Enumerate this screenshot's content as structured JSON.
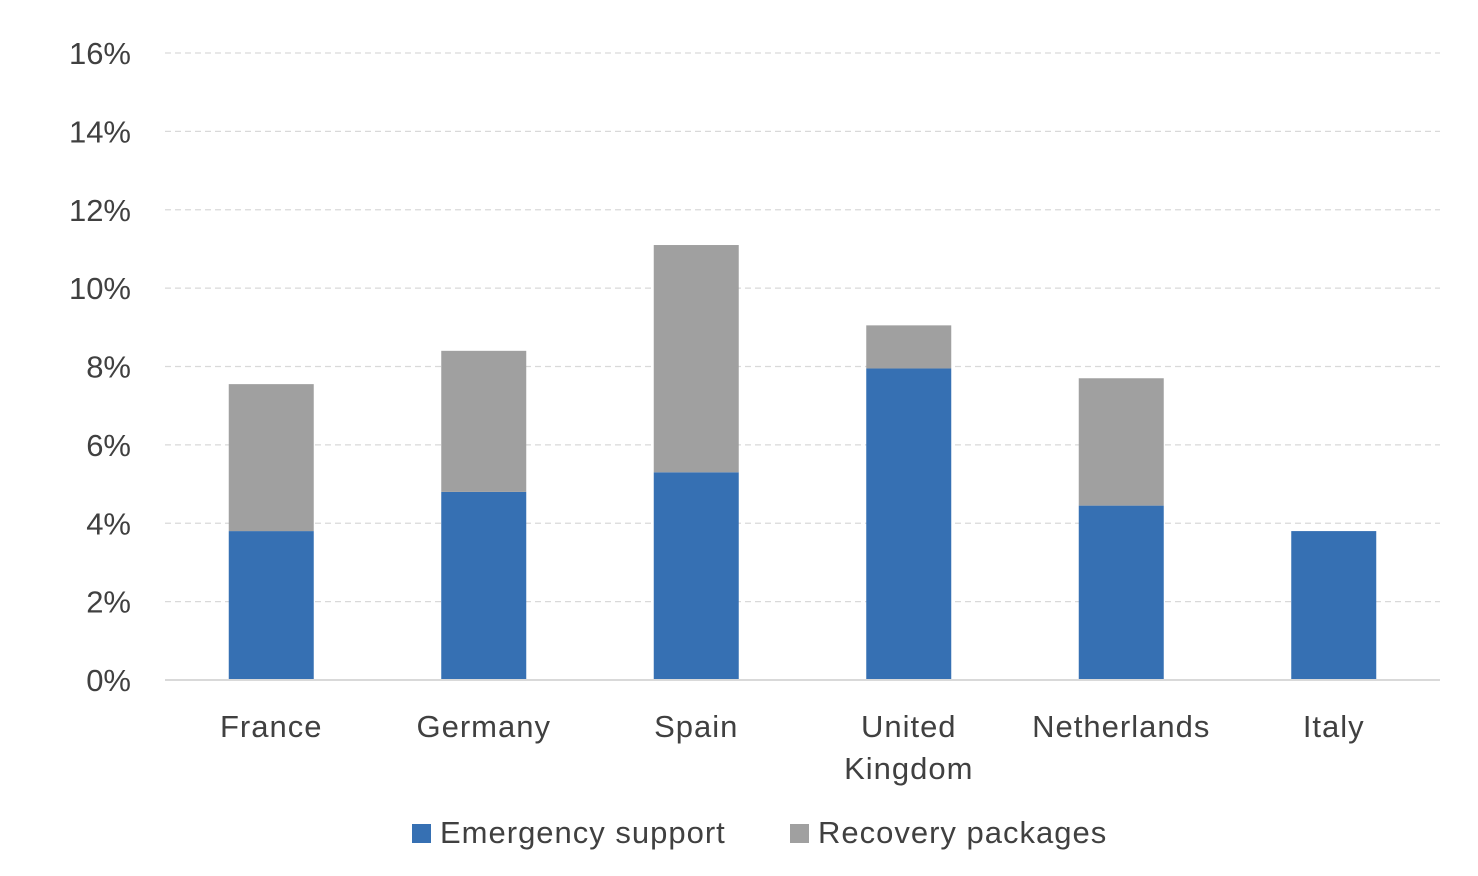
{
  "chart_data": {
    "type": "bar",
    "stacked": true,
    "categories": [
      [
        "France"
      ],
      [
        "Germany"
      ],
      [
        "Spain"
      ],
      [
        "United",
        "Kingdom"
      ],
      [
        "Netherlands"
      ],
      [
        "Italy"
      ]
    ],
    "series": [
      {
        "name": "Emergency support",
        "color": "#3670b3",
        "values": [
          3.8,
          4.8,
          5.3,
          7.95,
          4.45,
          3.8
        ]
      },
      {
        "name": "Recovery packages",
        "color": "#a0a0a0",
        "values": [
          3.75,
          3.6,
          5.8,
          1.1,
          3.25,
          0
        ]
      }
    ],
    "ylim": [
      0,
      16
    ],
    "yticks": [
      0,
      2,
      4,
      6,
      8,
      10,
      12,
      14,
      16
    ],
    "ytick_labels": [
      "0%",
      "2%",
      "4%",
      "6%",
      "8%",
      "10%",
      "12%",
      "14%",
      "16%"
    ],
    "grid": true,
    "legend": "bottom-center"
  }
}
